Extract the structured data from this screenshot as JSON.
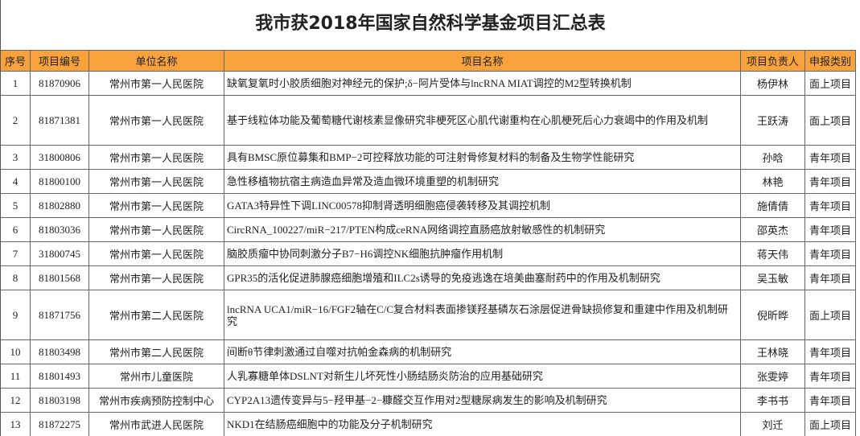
{
  "header": {
    "title": "我市获2018年国家自然科学基金项目汇总表"
  },
  "table": {
    "columns": [
      "序号",
      "项目编号",
      "单位名称",
      "项目名称",
      "项目负责人",
      "申报类别"
    ],
    "rows": [
      [
        "1",
        "81870906",
        "常州市第一人民医院",
        "缺氧复氧时小胶质细胞对神经元的保护;δ−阿片受体与lncRNA MIAT调控的M2型转换机制",
        "杨伊林",
        "面上项目"
      ],
      [
        "2",
        "81871381",
        "常州市第一人民医院",
        "基于线粒体功能及葡萄糖代谢核素显像研究非梗死区心肌代谢重构在心肌梗死后心力衰竭中的作用及机制",
        "王跃涛",
        "面上项目"
      ],
      [
        "3",
        "31800806",
        "常州市第一人民医院",
        "具有BMSC原位募集和BMP−2可控释放功能的可注射骨修复材料的制备及生物学性能研究",
        "孙晗",
        "青年项目"
      ],
      [
        "4",
        "81800100",
        "常州市第一人民医院",
        "急性移植物抗宿主病造血异常及造血微环境重塑的机制研究",
        "林艳",
        "青年项目"
      ],
      [
        "5",
        "81802880",
        "常州市第一人民医院",
        "GATA3特异性下调LINC00578抑制肾透明细胞癌侵袭转移及其调控机制",
        "施倩倩",
        "青年项目"
      ],
      [
        "6",
        "81803036",
        "常州市第一人民医院",
        "CircRNA_100227/miR−217/PTEN构成ceRNA网络调控直肠癌放射敏感性的机制研究",
        "邵英杰",
        "青年项目"
      ],
      [
        "7",
        "31800745",
        "常州市第一人民医院",
        "脑胶质瘤中协同刺激分子B7−H6调控NK细胞抗肿瘤作用机制",
        "蒋天伟",
        "青年项目"
      ],
      [
        "8",
        "81801568",
        "常州市第一人民医院",
        "GPR35的活化促进肺腺癌细胞增殖和ILC2s诱导的免疫逃逸在培美曲塞耐药中的作用及机制研究",
        "吴玉敏",
        "青年项目"
      ],
      [
        "9",
        "81871756",
        "常州市第二人民医院",
        "lncRNA UCA1/miR−16/FGF2轴在C/C复合材料表面掺镁羟基磷灰石涂层促进骨缺损修复和重建中作用及机制研究",
        "倪昕晔",
        "面上项目"
      ],
      [
        "10",
        "81803498",
        "常州市第二人民医院",
        "间断θ节律刺激通过自噬对抗帕金森病的机制研究",
        "王林晓",
        "青年项目"
      ],
      [
        "11",
        "81801493",
        "常州市儿童医院",
        "人乳寡糖单体DSLNT对新生儿坏死性小肠结肠炎防治的应用基础研究",
        "张雯婷",
        "青年项目"
      ],
      [
        "12",
        "81803198",
        "常州市疾病预防控制中心",
        "CYP2A13遗传变异与5−羟甲基−2−糠醛交互作用对2型糖尿病发生的影响及机制研究",
        "李书书",
        "青年项目"
      ],
      [
        "13",
        "81872275",
        "常州市武进人民医院",
        "NKD1在结肠癌细胞中的功能及分子机制研究",
        "刘迁",
        "面上项目"
      ]
    ]
  }
}
